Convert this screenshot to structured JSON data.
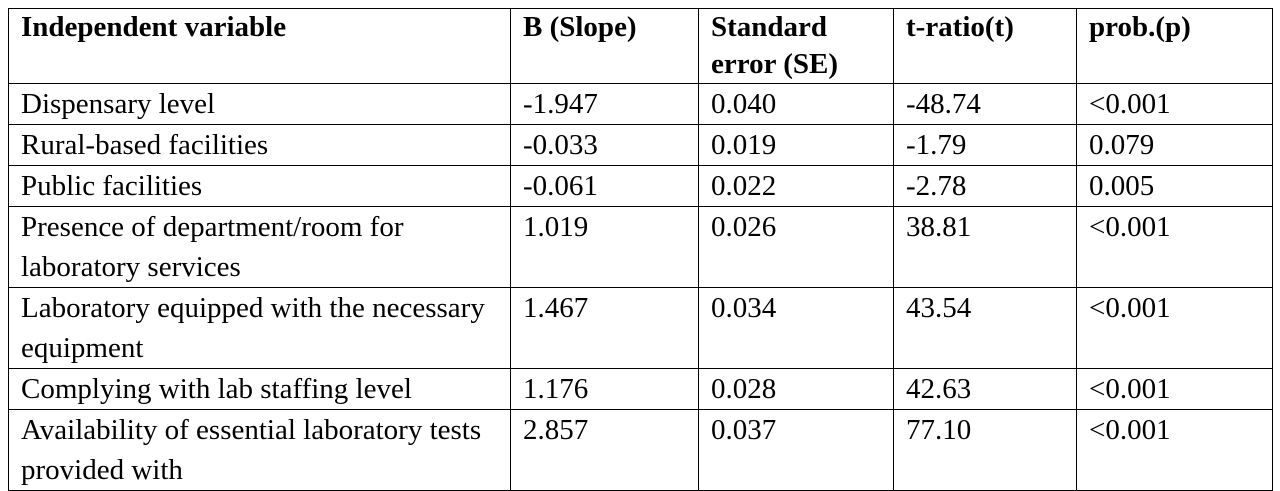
{
  "table": {
    "header": [
      "Independent variable",
      "B (Slope)",
      "Standard error (SE)",
      "t-ratio(t)",
      "prob.(p)"
    ],
    "rows": [
      [
        "Dispensary level",
        "-1.947",
        "0.040",
        "-48.74",
        "<0.001"
      ],
      [
        "Rural-based facilities",
        "-0.033",
        "0.019",
        "-1.79",
        "0.079"
      ],
      [
        "Public facilities",
        "-0.061",
        "0.022",
        "-2.78",
        "0.005"
      ],
      [
        "Presence of department/room for laboratory services",
        "1.019",
        "0.026",
        "38.81",
        "<0.001"
      ],
      [
        "Laboratory equipped with the necessary equipment",
        "1.467",
        "0.034",
        "43.54",
        "<0.001"
      ],
      [
        "Complying with lab staffing level",
        "1.176",
        "0.028",
        "42.63",
        "<0.001"
      ],
      [
        "Availability of essential laboratory tests provided with",
        "2.857",
        "0.037",
        "77.10",
        "<0.001"
      ]
    ]
  }
}
